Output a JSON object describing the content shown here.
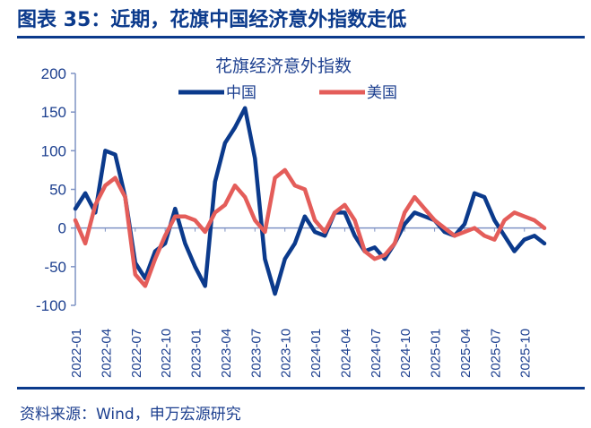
{
  "header": {
    "title": "图表 35：近期，花旗中国经济意外指数走低"
  },
  "footer": {
    "source": "资料来源：Wind，申万宏源研究"
  },
  "colors": {
    "china": "#0b3a8c",
    "us": "#e45d5a",
    "axis": "#7f93c4",
    "text": "#1c3f8f"
  },
  "chart_data": {
    "type": "line",
    "title": "花旗经济意外指数",
    "xlabel": "",
    "ylabel": "",
    "ylim": [
      -100,
      200
    ],
    "yticks": [
      200,
      150,
      100,
      50,
      0,
      -50,
      -100
    ],
    "x_tick_labels": [
      "2022-01",
      "2022-04",
      "2022-07",
      "2022-10",
      "2023-01",
      "2023-04",
      "2023-07",
      "2023-10",
      "2024-01",
      "2024-04",
      "2024-07",
      "2024-10",
      "2025-01",
      "2025-04",
      "2025-07",
      "2025-10"
    ],
    "legend": [
      "中国",
      "美国"
    ],
    "legend_position": "top",
    "grid": false,
    "x": [
      "2022-01",
      "2022-02",
      "2022-03",
      "2022-04",
      "2022-05",
      "2022-06",
      "2022-07",
      "2022-08",
      "2022-09",
      "2022-10",
      "2022-11",
      "2022-12",
      "2023-01",
      "2023-02",
      "2023-03",
      "2023-04",
      "2023-05",
      "2023-06",
      "2023-07",
      "2023-08",
      "2023-09",
      "2023-10",
      "2023-11",
      "2023-12",
      "2024-01",
      "2024-02",
      "2024-03",
      "2024-04",
      "2024-05",
      "2024-06",
      "2024-07",
      "2024-08",
      "2024-09",
      "2024-10",
      "2024-11",
      "2024-12",
      "2025-01",
      "2025-02",
      "2025-03",
      "2025-04",
      "2025-05",
      "2025-06",
      "2025-07",
      "2025-08",
      "2025-09",
      "2025-10",
      "2025-11",
      "2025-12"
    ],
    "series": [
      {
        "name": "中国",
        "values": [
          25,
          45,
          20,
          100,
          95,
          40,
          -45,
          -65,
          -30,
          -20,
          25,
          -20,
          -50,
          -75,
          60,
          110,
          130,
          155,
          90,
          -40,
          -85,
          -40,
          -20,
          15,
          -5,
          -10,
          20,
          20,
          -10,
          -30,
          -25,
          -40,
          -20,
          5,
          20,
          15,
          10,
          -5,
          -10,
          5,
          45,
          40,
          10,
          -10,
          -30,
          -15,
          -10,
          -20
        ]
      },
      {
        "name": "美国",
        "values": [
          10,
          -20,
          30,
          55,
          65,
          40,
          -60,
          -75,
          -40,
          -10,
          15,
          15,
          10,
          -5,
          20,
          30,
          55,
          40,
          10,
          -5,
          65,
          75,
          55,
          50,
          10,
          -5,
          20,
          30,
          10,
          -30,
          -40,
          -35,
          -20,
          20,
          40,
          25,
          10,
          0,
          -10,
          -5,
          0,
          -10,
          -15,
          10,
          20,
          15,
          10,
          0
        ]
      }
    ]
  }
}
